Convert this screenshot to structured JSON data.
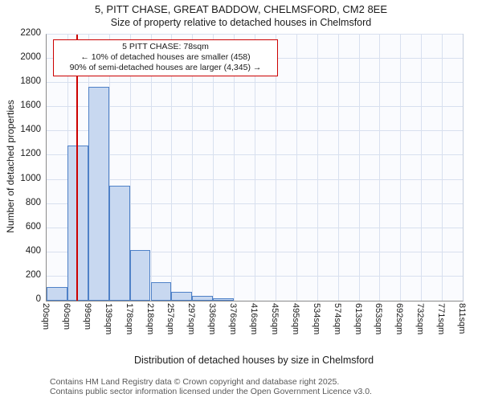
{
  "chart_data": {
    "type": "bar",
    "title": "5, PITT CHASE, GREAT BADDOW, CHELMSFORD, CM2 8EE",
    "subtitle": "Size of property relative to detached houses in Chelmsford",
    "xlabel": "Distribution of detached houses by size in Chelmsford",
    "ylabel": "Number of detached properties",
    "categories": [
      "20sqm",
      "60sqm",
      "99sqm",
      "139sqm",
      "178sqm",
      "218sqm",
      "257sqm",
      "297sqm",
      "336sqm",
      "376sqm",
      "416sqm",
      "455sqm",
      "495sqm",
      "534sqm",
      "574sqm",
      "613sqm",
      "653sqm",
      "692sqm",
      "732sqm",
      "771sqm",
      "811sqm"
    ],
    "values": [
      110,
      1280,
      1770,
      950,
      420,
      150,
      75,
      40,
      20,
      0,
      0,
      0,
      0,
      0,
      0,
      0,
      0,
      0,
      0,
      0
    ],
    "ylim": [
      0,
      2200
    ],
    "ytick_step": 200,
    "grid": true,
    "legend": "none",
    "bar_fill": "#c8d8f0",
    "bar_border": "#4f81c7",
    "marker_value": 78,
    "marker_color": "#cc0000"
  },
  "annotation": {
    "line1": "5 PITT CHASE: 78sqm",
    "line2": "← 10% of detached houses are smaller (458)",
    "line3": "90% of semi-detached houses are larger (4,345) →",
    "border_color": "#cc0000"
  },
  "footer": {
    "line1": "Contains HM Land Registry data © Crown copyright and database right 2025.",
    "line2": "Contains public sector information licensed under the Open Government Licence v3.0."
  }
}
